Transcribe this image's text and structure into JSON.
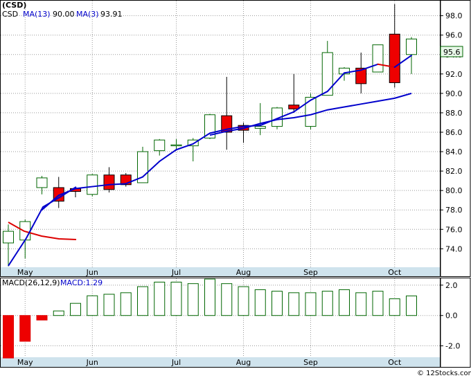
{
  "chart_data": [
    {
      "type": "candlestick",
      "title": "(CSD)",
      "legend": {
        "symbol": "CSD",
        "ma13_label": "MA(13)",
        "ma13_value": "90.00",
        "ma3_label": "MA(3)",
        "ma3_value": "93.91"
      },
      "last_price_tag": "95.6",
      "x_tick_labels": [
        "May",
        "Jun",
        "Jul",
        "Aug",
        "Sep",
        "Oct"
      ],
      "y_tick_labels": [
        "74.0",
        "76.0",
        "78.0",
        "80.0",
        "82.0",
        "84.0",
        "86.0",
        "88.0",
        "90.0",
        "92.0",
        "94.0",
        "96.0",
        "98.0"
      ],
      "ylim": [
        72.1,
        99.4
      ],
      "grid": true,
      "candles": [
        {
          "open": 74.6,
          "high": 76.5,
          "low": 72.2,
          "close": 75.8
        },
        {
          "open": 74.9,
          "high": 77.0,
          "low": 73.0,
          "close": 76.8
        },
        {
          "open": 80.3,
          "high": 81.5,
          "low": 79.6,
          "close": 81.3
        },
        {
          "open": 80.3,
          "high": 81.4,
          "low": 78.2,
          "close": 78.9
        },
        {
          "open": 80.2,
          "high": 80.4,
          "low": 79.3,
          "close": 79.9
        },
        {
          "open": 79.6,
          "high": 81.7,
          "low": 79.4,
          "close": 81.6
        },
        {
          "open": 81.6,
          "high": 82.4,
          "low": 79.8,
          "close": 80.1
        },
        {
          "open": 81.6,
          "high": 81.8,
          "low": 80.4,
          "close": 80.6
        },
        {
          "open": 80.8,
          "high": 84.5,
          "low": 80.8,
          "close": 84.0
        },
        {
          "open": 84.1,
          "high": 85.3,
          "low": 83.6,
          "close": 85.2
        },
        {
          "open": 84.6,
          "high": 85.3,
          "low": 84.2,
          "close": 84.7
        },
        {
          "open": 84.6,
          "high": 85.4,
          "low": 83.0,
          "close": 85.2
        },
        {
          "open": 85.4,
          "high": 87.9,
          "low": 85.3,
          "close": 87.8
        },
        {
          "open": 87.7,
          "high": 91.7,
          "low": 84.2,
          "close": 86.0
        },
        {
          "open": 86.7,
          "high": 87.0,
          "low": 84.9,
          "close": 86.2
        },
        {
          "open": 86.4,
          "high": 89.0,
          "low": 85.7,
          "close": 86.6
        },
        {
          "open": 86.6,
          "high": 88.6,
          "low": 86.3,
          "close": 88.5
        },
        {
          "open": 88.8,
          "high": 92.0,
          "low": 88.0,
          "close": 88.4
        },
        {
          "open": 86.6,
          "high": 90.0,
          "low": 86.3,
          "close": 89.6
        },
        {
          "open": 89.8,
          "high": 95.4,
          "low": 89.8,
          "close": 94.2
        },
        {
          "open": 92.0,
          "high": 92.7,
          "low": 91.3,
          "close": 92.6
        },
        {
          "open": 92.6,
          "high": 94.2,
          "low": 90.0,
          "close": 91.0
        },
        {
          "open": 92.2,
          "high": 95.0,
          "low": 92.2,
          "close": 95.0
        },
        {
          "open": 96.1,
          "high": 99.2,
          "low": 90.6,
          "close": 91.1
        },
        {
          "open": 94.0,
          "high": 95.8,
          "low": 92.0,
          "close": 95.6
        }
      ],
      "ma13": [
        null,
        null,
        null,
        null,
        null,
        null,
        null,
        null,
        null,
        null,
        null,
        null,
        85.7,
        86.1,
        86.4,
        86.9,
        87.3,
        87.5,
        87.8,
        88.3,
        88.6,
        88.9,
        89.2,
        89.5,
        90.0
      ],
      "ma3": [
        null,
        null,
        78.0,
        79.5,
        80.2,
        80.4,
        80.6,
        80.7,
        81.4,
        83.0,
        84.2,
        84.8,
        85.9,
        86.3,
        86.6,
        86.7,
        87.4,
        88.1,
        89.3,
        90.2,
        92.1,
        92.4,
        93.0,
        92.7,
        93.91
      ],
      "ma_colors": {
        "ma13": "#0000cc",
        "ma3_up": "#0000cc",
        "ma3_down": "#dd0000"
      }
    },
    {
      "type": "bar",
      "title": "MACD",
      "legend": {
        "params": "MACD(26,12,9)",
        "value_label": "MACD:1.29"
      },
      "y_tick_labels": [
        "2.0",
        "0.0",
        "-2.0"
      ],
      "ylim": [
        -2.75,
        2.45
      ],
      "values": [
        -2.8,
        -1.7,
        -0.3,
        0.3,
        0.8,
        1.3,
        1.4,
        1.5,
        1.9,
        2.2,
        2.2,
        2.1,
        2.4,
        2.1,
        1.9,
        1.7,
        1.6,
        1.5,
        1.5,
        1.6,
        1.7,
        1.5,
        1.6,
        1.1,
        1.29
      ],
      "x_tick_labels": [
        "May",
        "Jun",
        "Jul",
        "Aug",
        "Sep",
        "Oct"
      ]
    }
  ],
  "colors": {
    "up": "#006600",
    "down": "#dd0000",
    "down_fill": "#ee0000",
    "axis_band": "#cfe3ed",
    "grid": "#999999"
  },
  "watermark": "© 12Stocks.com"
}
